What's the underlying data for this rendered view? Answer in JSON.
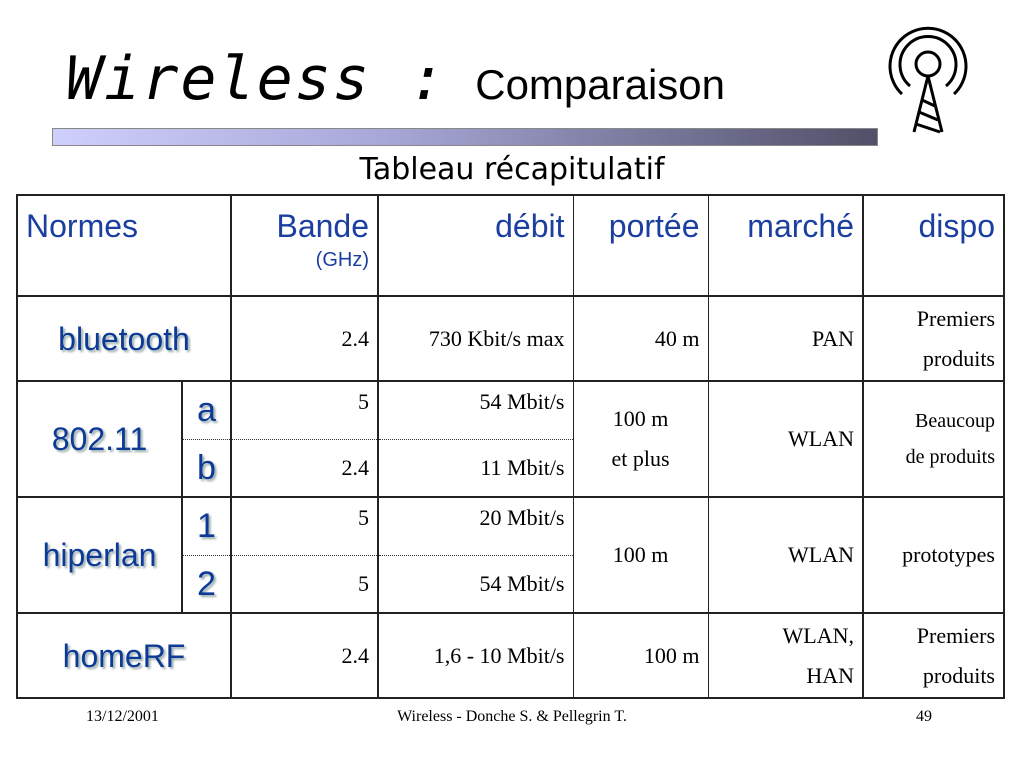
{
  "title": {
    "main": "Wireless :",
    "sub": "Comparaison"
  },
  "subtitle": "Tableau récapitulatif",
  "logo_icon": "radio-tower-icon",
  "table": {
    "headers": {
      "normes": "Normes",
      "bande": "Bande",
      "bande_unit": "(GHz)",
      "debit": "débit",
      "portee": "portée",
      "marche": "marché",
      "dispo": "dispo"
    },
    "rows": {
      "bluetooth": {
        "name": "bluetooth",
        "bande": "2.4",
        "debit": "730 Kbit/s max",
        "portee": "40 m",
        "marche": "PAN",
        "dispo1": "Premiers",
        "dispo2": "produits"
      },
      "wifi": {
        "name": "802.11",
        "a": {
          "label": "a",
          "bande": "5",
          "debit": "54 Mbit/s"
        },
        "b": {
          "label": "b",
          "bande": "2.4",
          "debit": "11 Mbit/s"
        },
        "portee1": "100 m",
        "portee2": "et plus",
        "marche": "WLAN",
        "dispo1": "Beaucoup",
        "dispo2": "de produits"
      },
      "hiperlan": {
        "name": "hiperlan",
        "v1": {
          "label": "1",
          "bande": "5",
          "debit": "20 Mbit/s"
        },
        "v2": {
          "label": "2",
          "bande": "5",
          "debit": "54 Mbit/s"
        },
        "portee": "100 m",
        "marche": "WLAN",
        "dispo": "prototypes"
      },
      "homerf": {
        "name": "homeRF",
        "bande": "2.4",
        "debit": "1,6 - 10 Mbit/s",
        "portee": "100 m",
        "marche1": "WLAN,",
        "marche2": "HAN",
        "dispo1": "Premiers",
        "dispo2": "produits"
      }
    }
  },
  "footer": {
    "date": "13/12/2001",
    "center": "Wireless - Donche S. & Pellegrin T.",
    "page": "49"
  }
}
